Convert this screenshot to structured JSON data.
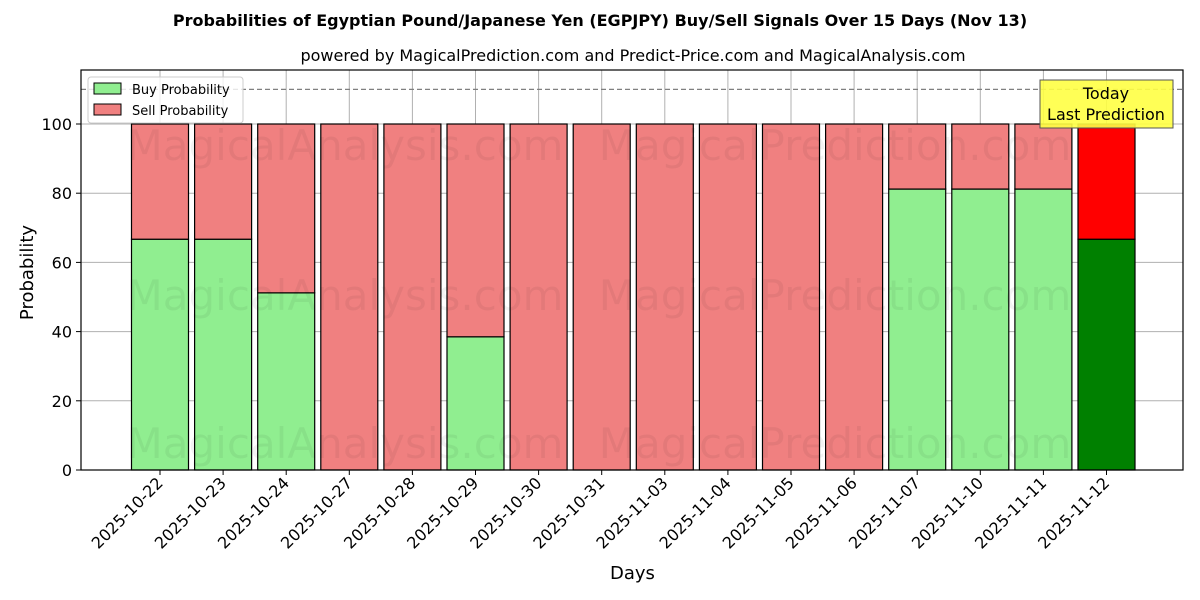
{
  "chart_data": {
    "type": "bar",
    "stacked": true,
    "title": "Probabilities of Egyptian Pound/Japanese Yen (EGPJPY) Buy/Sell Signals Over 15 Days (Nov 13)",
    "subtitle": "powered by MagicalPrediction.com and Predict-Price.com and MagicalAnalysis.com",
    "xlabel": "Days",
    "ylabel": "Probability",
    "ylim": [
      0,
      115
    ],
    "yticks": [
      0,
      20,
      40,
      60,
      80,
      100
    ],
    "categories": [
      "2025-10-22",
      "2025-10-23",
      "2025-10-24",
      "2025-10-27",
      "2025-10-28",
      "2025-10-29",
      "2025-10-30",
      "2025-10-31",
      "2025-11-03",
      "2025-11-04",
      "2025-11-05",
      "2025-11-06",
      "2025-11-07",
      "2025-11-10",
      "2025-11-11",
      "2025-11-12"
    ],
    "series": [
      {
        "name": "Buy Probability",
        "color": "#90ee90",
        "values": [
          66.7,
          66.7,
          51.2,
          0,
          0,
          38.5,
          0,
          0,
          0,
          0,
          0,
          0,
          81.2,
          81.2,
          81.2,
          66.7
        ]
      },
      {
        "name": "Sell Probability",
        "color": "#f08080",
        "values": [
          33.3,
          33.3,
          48.8,
          100,
          100,
          61.5,
          100,
          100,
          100,
          100,
          100,
          100,
          18.8,
          18.8,
          18.8,
          33.3
        ]
      }
    ],
    "highlight": {
      "index": 15,
      "buy_color": "#008000",
      "sell_color": "#ff0000",
      "annotation": [
        "Today",
        "Last Prediction"
      ]
    },
    "reference_line": 110,
    "legend": {
      "position": "upper left",
      "entries": [
        "Buy Probability",
        "Sell Probability"
      ]
    },
    "grid": true,
    "watermarks": [
      "MagicalAnalysis.com",
      "MagicalPrediction.com"
    ]
  }
}
